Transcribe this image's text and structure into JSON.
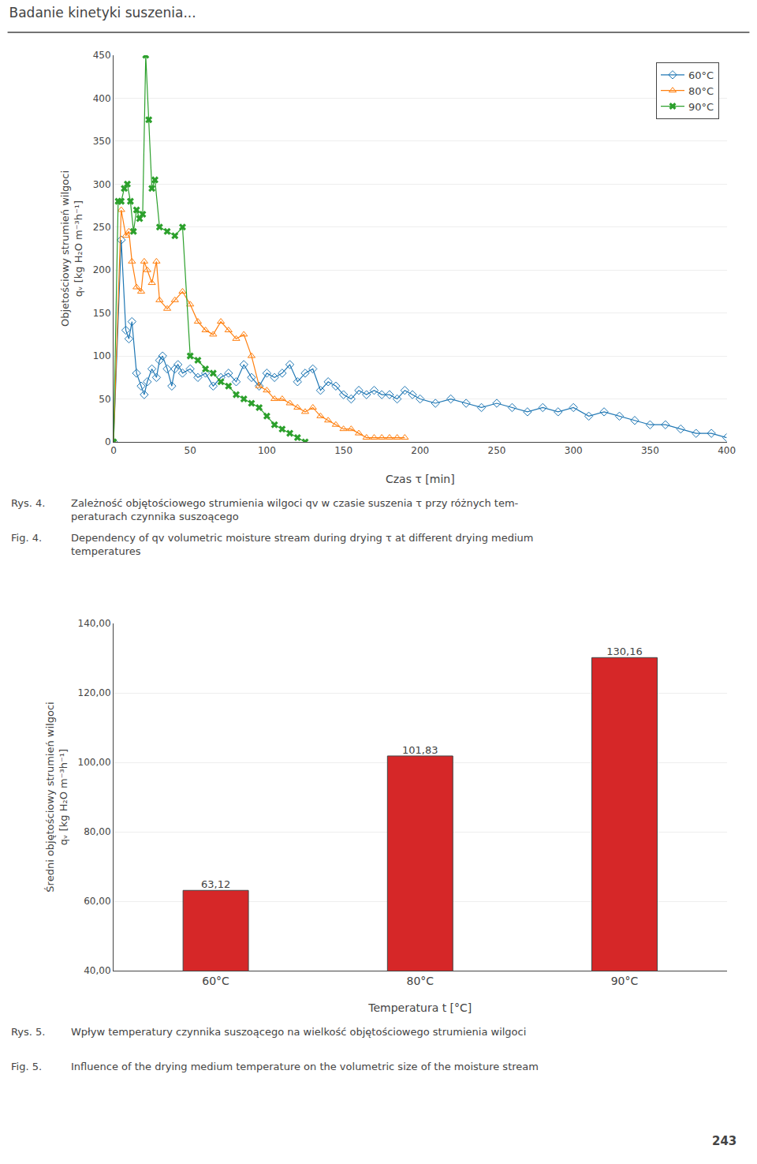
{
  "chart_data": [
    {
      "type": "line",
      "title": "Badanie kinetyki suszenia...",
      "xlabel": "Czas τ [min]",
      "ylabel": "Objetościowy strumień wilgoci\nqᵥ [kg H₂O m⁻³h⁻¹]",
      "xlim": [
        0,
        400
      ],
      "ylim": [
        0,
        450
      ],
      "xticks": [
        0,
        50,
        100,
        150,
        200,
        250,
        300,
        350,
        400
      ],
      "yticks": [
        0,
        50,
        100,
        150,
        200,
        250,
        300,
        350,
        400,
        450
      ],
      "grid": "y",
      "legend": "upper right",
      "series": [
        {
          "name": "60°C",
          "marker": "diamond",
          "x": [
            0,
            5,
            8,
            10,
            12,
            15,
            18,
            20,
            22,
            25,
            28,
            30,
            32,
            35,
            38,
            40,
            42,
            45,
            50,
            55,
            60,
            65,
            70,
            75,
            80,
            85,
            90,
            95,
            100,
            105,
            110,
            115,
            120,
            125,
            130,
            135,
            140,
            145,
            150,
            155,
            160,
            165,
            170,
            175,
            180,
            185,
            190,
            195,
            200,
            210,
            220,
            230,
            240,
            250,
            260,
            270,
            280,
            290,
            300,
            310,
            320,
            330,
            340,
            350,
            360,
            370,
            380,
            390,
            400
          ],
          "values": [
            0,
            235,
            130,
            120,
            140,
            80,
            65,
            55,
            70,
            85,
            75,
            95,
            100,
            85,
            65,
            85,
            90,
            80,
            85,
            75,
            80,
            65,
            75,
            80,
            70,
            90,
            75,
            65,
            80,
            75,
            80,
            90,
            70,
            80,
            85,
            60,
            70,
            65,
            55,
            50,
            60,
            55,
            60,
            55,
            55,
            50,
            60,
            55,
            50,
            45,
            50,
            45,
            40,
            45,
            40,
            35,
            40,
            35,
            40,
            30,
            35,
            30,
            25,
            20,
            20,
            15,
            10,
            10,
            5
          ]
        },
        {
          "name": "80°C",
          "marker": "triangle",
          "x": [
            0,
            5,
            8,
            10,
            12,
            15,
            18,
            20,
            22,
            25,
            28,
            30,
            35,
            40,
            45,
            50,
            55,
            60,
            65,
            70,
            75,
            80,
            85,
            90,
            95,
            100,
            105,
            110,
            115,
            120,
            125,
            130,
            135,
            140,
            145,
            150,
            155,
            160,
            165,
            170,
            175,
            180,
            185,
            190
          ],
          "values": [
            0,
            270,
            240,
            245,
            210,
            180,
            175,
            210,
            200,
            185,
            210,
            165,
            155,
            165,
            175,
            160,
            140,
            130,
            125,
            140,
            130,
            120,
            125,
            100,
            65,
            60,
            50,
            50,
            45,
            40,
            35,
            40,
            30,
            25,
            20,
            15,
            15,
            10,
            5,
            5,
            5,
            5,
            5,
            5
          ]
        },
        {
          "name": "90°C",
          "marker": "x",
          "x": [
            0,
            3,
            5,
            7,
            9,
            11,
            13,
            15,
            17,
            19,
            21,
            23,
            25,
            27,
            30,
            35,
            40,
            45,
            50,
            55,
            60,
            65,
            70,
            75,
            80,
            85,
            90,
            95,
            100,
            105,
            110,
            115,
            120,
            125
          ],
          "values": [
            0,
            280,
            280,
            295,
            300,
            280,
            245,
            270,
            260,
            265,
            450,
            375,
            295,
            305,
            250,
            245,
            240,
            250,
            100,
            95,
            85,
            80,
            70,
            65,
            55,
            50,
            45,
            40,
            30,
            20,
            15,
            10,
            5,
            0
          ]
        }
      ],
      "annotations": [
        "Rys. 4.",
        "Zależność objętościowego strumienia wilgoci qv w czasie suszenia τ przy różnych tem-\nperaturach czynnika suszoącego",
        "Fig. 4.",
        "Dependency of qv volumetric moisture stream during drying τ at different drying medium\ntemperatures"
      ]
    },
    {
      "type": "bar",
      "xlabel": "Temperatura t [°C]",
      "ylabel": "Średni objętościowy strumień wilgoci\nqᵥ [kg H₂O m⁻³h⁻¹]",
      "categories": [
        "60°C",
        "80°C",
        "90°C"
      ],
      "values": [
        63.12,
        101.83,
        130.16
      ],
      "value_labels": [
        "63,12",
        "101,83",
        "130,16"
      ],
      "data_labels": true,
      "ylim": [
        40,
        140
      ],
      "yticks": [
        {
          "value": 40,
          "label": "40,00"
        },
        {
          "value": 60,
          "label": "60,00"
        },
        {
          "value": 80,
          "label": "80,00"
        },
        {
          "value": 100,
          "label": "100,00"
        },
        {
          "value": 120,
          "label": "120,00"
        },
        {
          "value": 140,
          "label": "140,00"
        }
      ],
      "grid": "y",
      "annotations": [
        "Rys. 5.",
        "Wpływ temperatury czynnika suszoącego na wielkość objętościowego strumienia wilgoci",
        "Fig. 5.",
        "Influence of the drying medium temperature on the volumetric size of the moisture stream",
        "243"
      ]
    }
  ]
}
